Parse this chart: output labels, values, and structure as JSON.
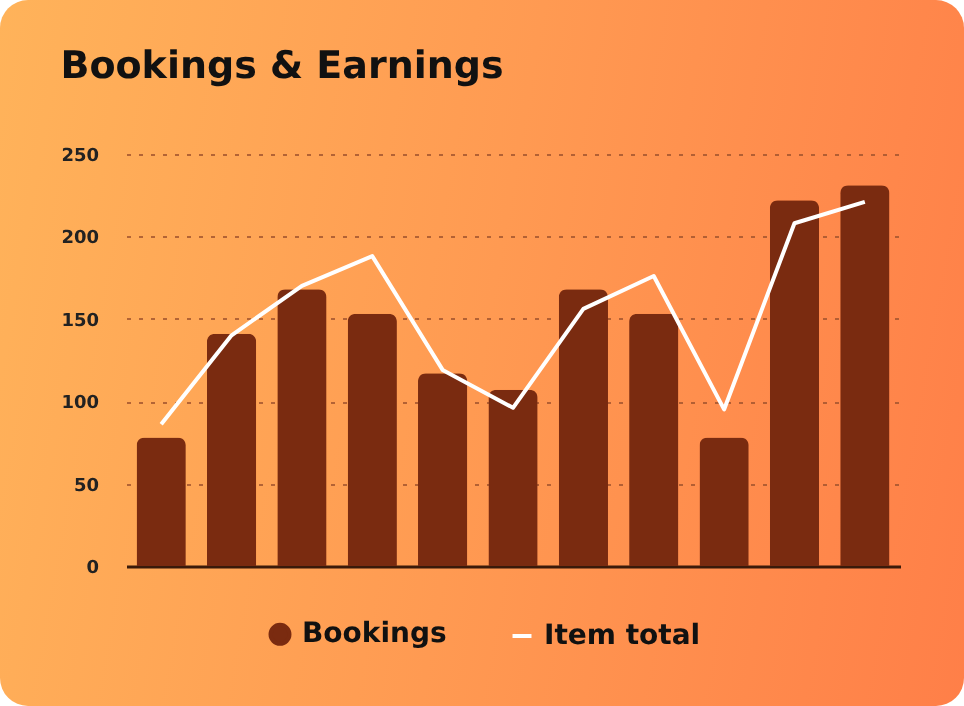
{
  "chart_data": {
    "type": "bar",
    "title": "Bookings & Earnings",
    "categories": [
      null,
      null,
      null,
      null,
      null,
      null,
      null,
      null,
      null,
      null,
      null
    ],
    "series": [
      {
        "name": "Bookings",
        "color": "#7a2b10",
        "values": [
          78,
          141,
          168,
          153,
          117,
          107,
          168,
          153,
          78,
          222,
          231
        ]
      },
      {
        "name": "Item total",
        "type": "line",
        "color": "#ffffff",
        "values": [
          86,
          140,
          170,
          188,
          119,
          96,
          156,
          176,
          95,
          208,
          221
        ]
      }
    ],
    "ylim": [
      0,
      250
    ],
    "yticks": [
      0,
      50,
      100,
      150,
      200,
      250
    ],
    "grid": "y",
    "legend": "bottom",
    "line_style": "solid",
    "marker": "none"
  }
}
